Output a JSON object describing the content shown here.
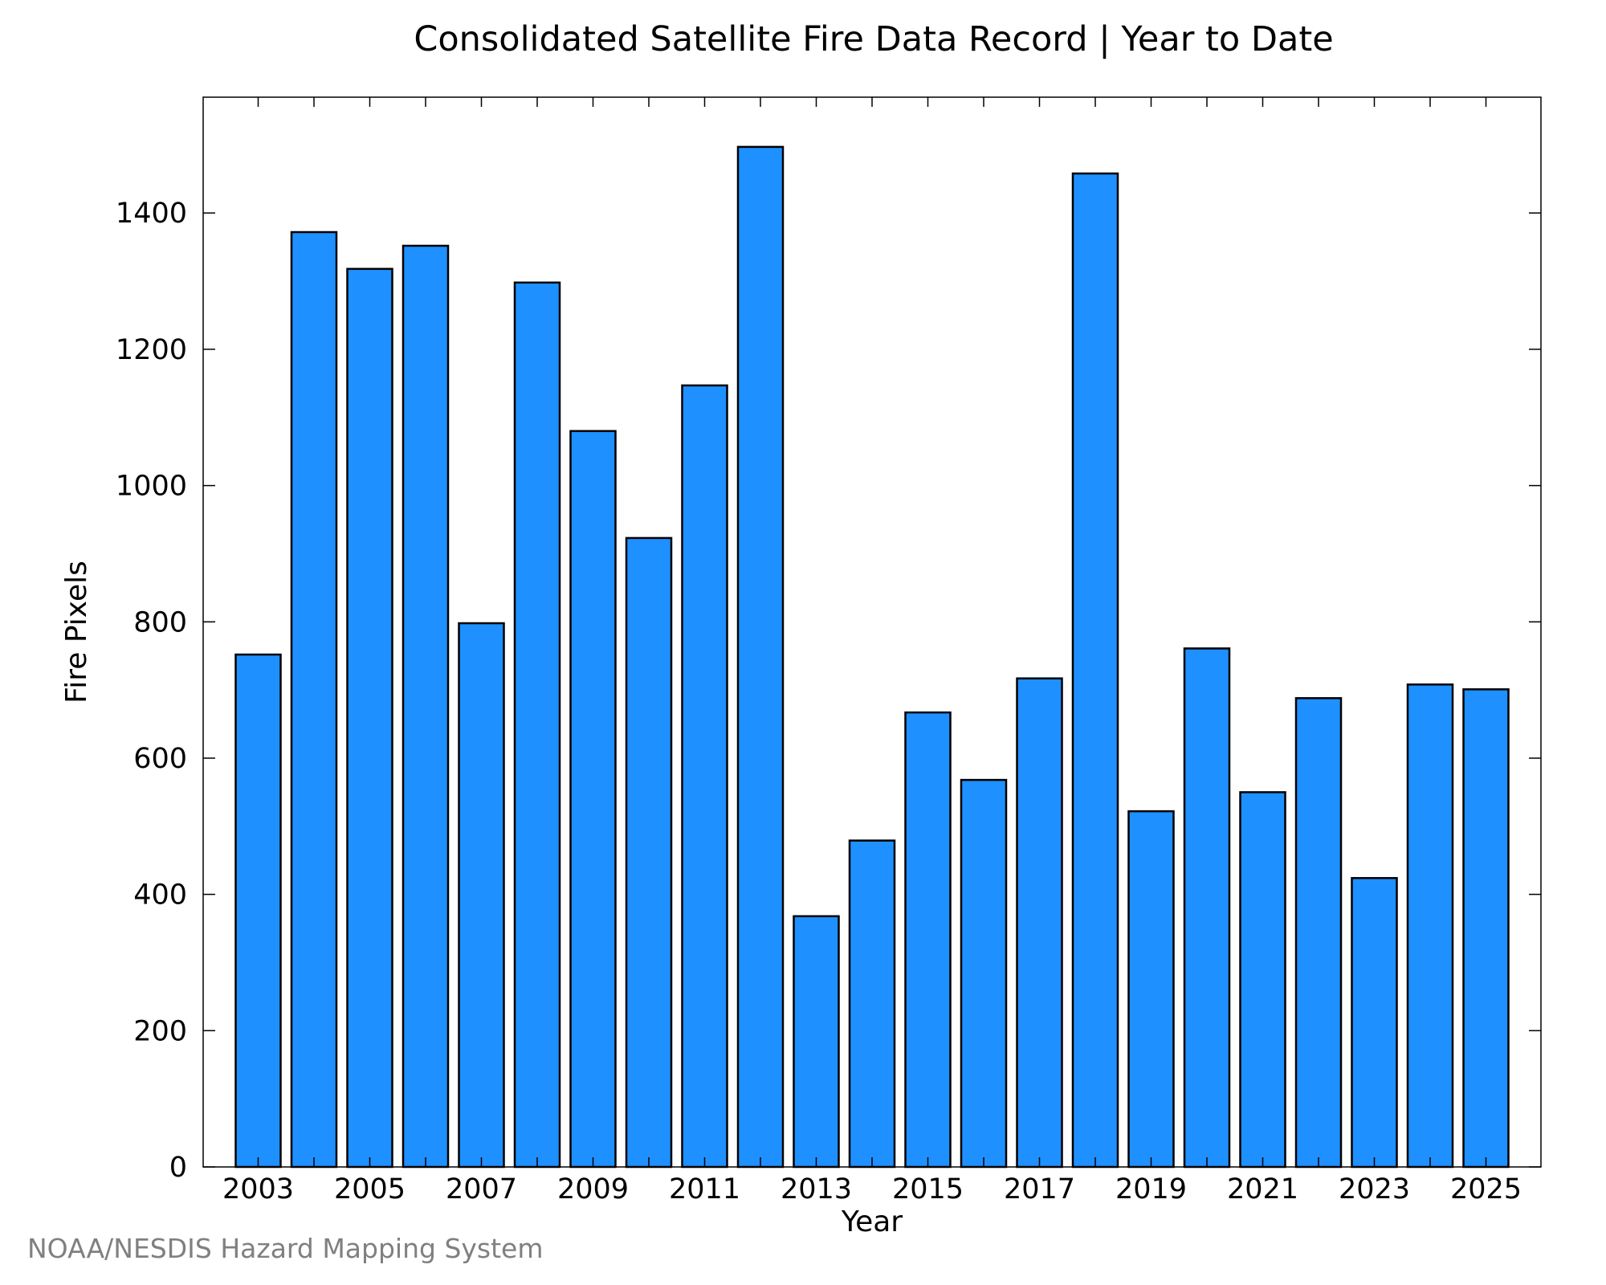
{
  "chart_data": {
    "type": "bar",
    "title": "Consolidated Satellite Fire Data Record | Year to Date",
    "xlabel": "Year",
    "ylabel": "Fire Pixels",
    "categories": [
      "2003",
      "2004",
      "2005",
      "2006",
      "2007",
      "2008",
      "2009",
      "2010",
      "2011",
      "2012",
      "2013",
      "2014",
      "2015",
      "2016",
      "2017",
      "2018",
      "2019",
      "2020",
      "2021",
      "2022",
      "2023",
      "2024",
      "2025"
    ],
    "values": [
      752,
      1372,
      1318,
      1352,
      798,
      1298,
      1080,
      923,
      1147,
      1497,
      368,
      479,
      667,
      568,
      717,
      1458,
      522,
      761,
      550,
      688,
      424,
      708,
      701
    ],
    "xtick_labels": [
      "2003",
      "2005",
      "2007",
      "2009",
      "2011",
      "2013",
      "2015",
      "2017",
      "2019",
      "2021",
      "2023",
      "2025"
    ],
    "yticks": [
      0,
      200,
      400,
      600,
      800,
      1000,
      1200,
      1400
    ],
    "ylim": [
      0,
      1570
    ],
    "grid": false,
    "legend": "none",
    "bar_color": "#1e90ff"
  },
  "footer": {
    "credit": "NOAA/NESDIS Hazard Mapping System"
  }
}
